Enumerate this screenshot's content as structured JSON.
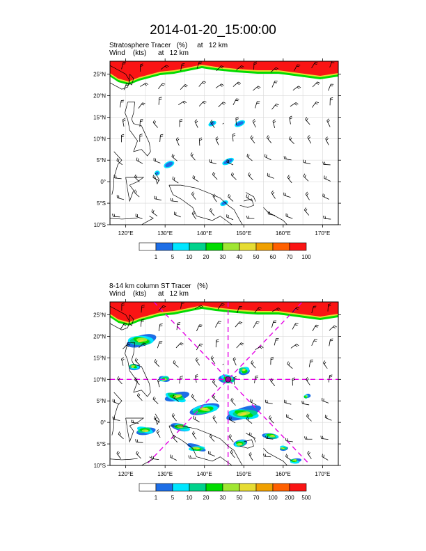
{
  "title": "2014-01-20_15:00:00",
  "panels": [
    {
      "id": "top",
      "header_line1": "Stratosphere Tracer   (%)     at   12 km",
      "header_line2": "Wind    (kts)      at   12 km",
      "lat_labels": [
        "25°N",
        "20°N",
        "15°N",
        "10°N",
        "5°N",
        "0°",
        "5°S",
        "10°S"
      ],
      "lon_labels": [
        "120°E",
        "130°E",
        "140°E",
        "150°E",
        "160°E",
        "170°E"
      ],
      "colorbar": {
        "colors": [
          "#ffffff",
          "#1e6ee6",
          "#00e6ff",
          "#00d28c",
          "#00dc00",
          "#a0e632",
          "#e6dc32",
          "#f0a000",
          "#ff6000",
          "#fa1414"
        ],
        "labels": [
          "1",
          "5",
          "10",
          "20",
          "30",
          "40",
          "50",
          "60",
          "70",
          "100"
        ]
      }
    },
    {
      "id": "bottom",
      "header_line1": "8-14 km column ST Tracer   (%)",
      "header_line2": "Wind    (kts)      at   12 km",
      "lat_labels": [
        "25°N",
        "20°N",
        "15°N",
        "10°N",
        "5°N",
        "0°",
        "5°S",
        "10°S"
      ],
      "lon_labels": [
        "120°E",
        "130°E",
        "140°E",
        "150°E",
        "160°E",
        "170°E"
      ],
      "colorbar": {
        "colors": [
          "#ffffff",
          "#1e6ee6",
          "#00e6ff",
          "#00d28c",
          "#00dc00",
          "#a0e632",
          "#e6dc32",
          "#f0a000",
          "#ff6000",
          "#fa1414"
        ],
        "labels": [
          "1",
          "5",
          "10",
          "20",
          "30",
          "50",
          "70",
          "100",
          "200",
          "500"
        ]
      }
    }
  ],
  "colors": {
    "stratosphere_red": "#fa1414",
    "cross_magenta": "#e600e6",
    "coast": "#000000",
    "grid": "#d8d8d8"
  },
  "map_extent": {
    "lon_min": 116,
    "lon_max": 174,
    "lat_min": -10,
    "lat_max": 28
  }
}
